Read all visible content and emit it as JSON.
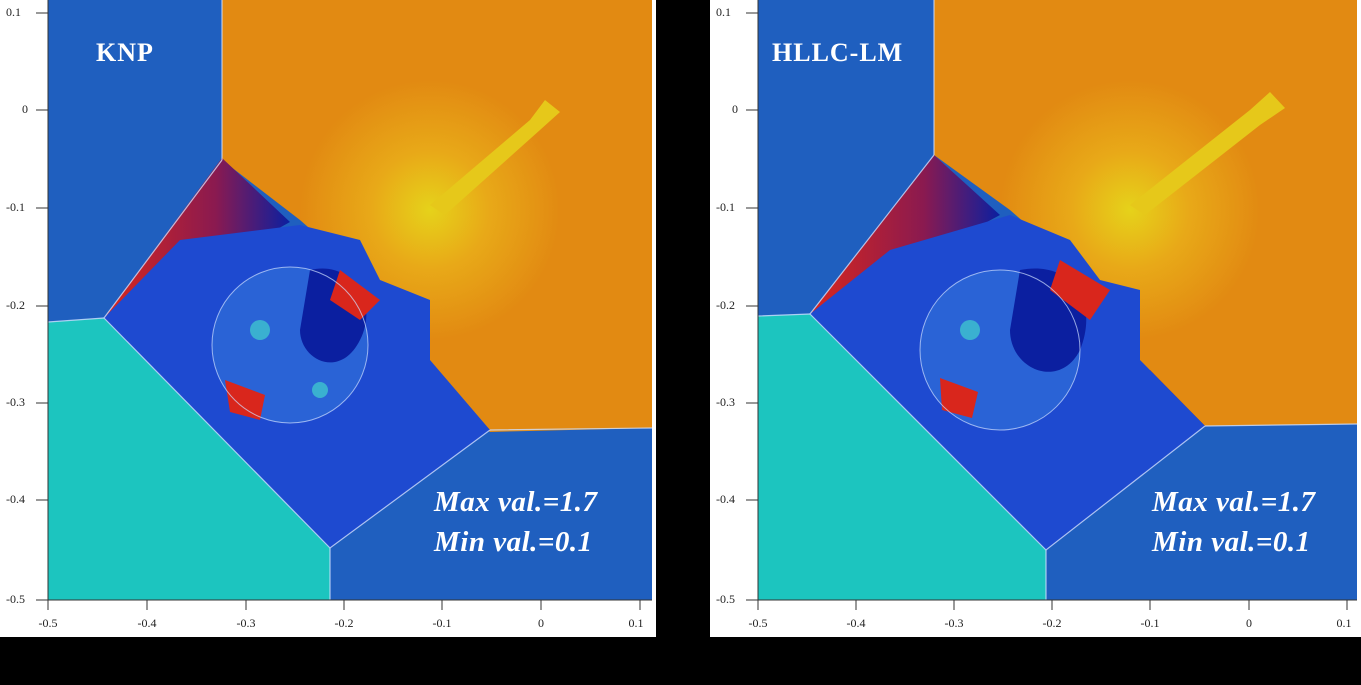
{
  "panels": [
    {
      "method_label": "KNP",
      "max_label": "Max val.=1.7",
      "min_label": "Min val.=0.1"
    },
    {
      "method_label": "HLLC-LM",
      "max_label": "Max val.=1.7",
      "min_label": "Min val.=0.1"
    }
  ],
  "axes": {
    "y_ticks": [
      "0.1",
      "0",
      "-0.1",
      "-0.2",
      "-0.3",
      "-0.4",
      "-0.5"
    ],
    "x_ticks": [
      "-0.5",
      "-0.4",
      "-0.3",
      "-0.2",
      "-0.1",
      "0",
      "0.1"
    ]
  },
  "colors": {
    "blue": "#1f5fbf",
    "cyan": "#1cc5bf",
    "orange": "#e28a12",
    "dark_blue": "#0b1fa0",
    "red": "#d9261c",
    "yellow": "#e6d21a",
    "background": "#000000"
  }
}
